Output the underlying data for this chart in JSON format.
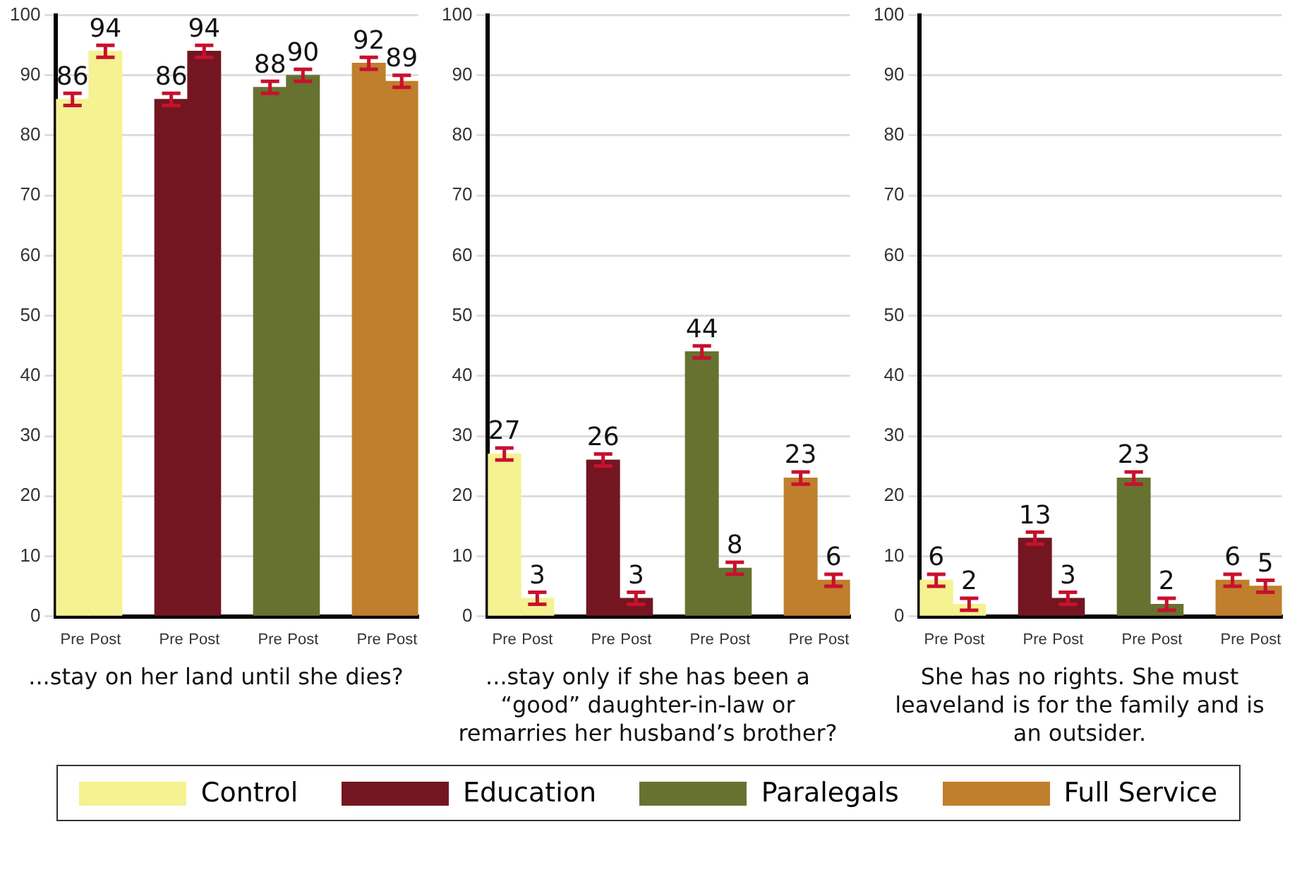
{
  "chart_data": [
    {
      "type": "bar",
      "categories": [
        "Pre",
        "Post",
        null,
        "Pre",
        "Post",
        null,
        "Pre",
        "Post",
        null,
        "Pre",
        "Post"
      ],
      "series": [
        {
          "name": "Control",
          "color": "#f4f291",
          "values": [
            86,
            94,
            null,
            null,
            null,
            null,
            null,
            null,
            null,
            null,
            null
          ],
          "errors": [
            1,
            1,
            null,
            null,
            null,
            null,
            null,
            null,
            null,
            null,
            null
          ]
        },
        {
          "name": "Education",
          "color": "#741621",
          "values": [
            null,
            null,
            null,
            86,
            94,
            null,
            null,
            null,
            null,
            null,
            null
          ],
          "errors": [
            null,
            null,
            null,
            1,
            1,
            null,
            null,
            null,
            null,
            null,
            null
          ]
        },
        {
          "name": "Paralegals",
          "color": "#677231",
          "values": [
            null,
            null,
            null,
            null,
            null,
            null,
            88,
            90,
            null,
            null,
            null
          ],
          "errors": [
            null,
            null,
            null,
            null,
            null,
            null,
            1,
            1,
            null,
            null,
            null
          ]
        },
        {
          "name": "Full Service",
          "color": "#c07f2c",
          "values": [
            null,
            null,
            null,
            null,
            null,
            null,
            null,
            null,
            null,
            92,
            89
          ],
          "errors": [
            null,
            null,
            null,
            null,
            null,
            null,
            null,
            null,
            null,
            1,
            1
          ]
        }
      ],
      "ylim": [
        0,
        100
      ],
      "yticks": [
        0,
        10,
        20,
        30,
        40,
        50,
        60,
        70,
        80,
        90,
        100
      ],
      "grid": "y",
      "data_labels": true,
      "legend": "bottom",
      "xlabel": "...stay on her land until she dies?"
    },
    {
      "type": "bar",
      "categories": [
        "Pre",
        "Post",
        null,
        "Pre",
        "Post",
        null,
        "Pre",
        "Post",
        null,
        "Pre",
        "Post"
      ],
      "series": [
        {
          "color": "#f4f291",
          "values": [
            27,
            3,
            null,
            null,
            null,
            null,
            null,
            null,
            null,
            null,
            null
          ],
          "errors": [
            1,
            1,
            null,
            null,
            null,
            null,
            null,
            null,
            null,
            null,
            null
          ]
        },
        {
          "color": "#741621",
          "values": [
            null,
            null,
            null,
            26,
            3,
            null,
            null,
            null,
            null,
            null,
            null
          ],
          "errors": [
            null,
            null,
            null,
            1,
            1,
            null,
            null,
            null,
            null,
            null,
            null
          ]
        },
        {
          "color": "#677231",
          "values": [
            null,
            null,
            null,
            null,
            null,
            null,
            44,
            8,
            null,
            null,
            null
          ],
          "errors": [
            null,
            null,
            null,
            null,
            null,
            null,
            1,
            1,
            null,
            null,
            null
          ]
        },
        {
          "color": "#c07f2c",
          "values": [
            null,
            null,
            null,
            null,
            null,
            null,
            null,
            null,
            null,
            23,
            6
          ],
          "errors": [
            null,
            null,
            null,
            null,
            null,
            null,
            null,
            null,
            null,
            1,
            1
          ]
        }
      ],
      "ylim": [
        0,
        100
      ],
      "yticks": [
        0,
        10,
        20,
        30,
        40,
        50,
        60,
        70,
        80,
        90,
        100
      ],
      "grid": "y",
      "data_labels": true,
      "xlabel": "...stay only if she has been a “good” daughter-in-law or remarries her husband’s brother?"
    },
    {
      "type": "bar",
      "categories": [
        "Pre",
        "Post",
        null,
        "Pre",
        "Post",
        null,
        "Pre",
        "Post",
        null,
        "Pre",
        "Post"
      ],
      "series": [
        {
          "color": "#f4f291",
          "values": [
            6,
            2,
            null,
            null,
            null,
            null,
            null,
            null,
            null,
            null,
            null
          ],
          "errors": [
            1,
            1,
            null,
            null,
            null,
            null,
            null,
            null,
            null,
            null,
            null
          ]
        },
        {
          "color": "#741621",
          "values": [
            null,
            null,
            null,
            13,
            3,
            null,
            null,
            null,
            null,
            null,
            null
          ],
          "errors": [
            null,
            null,
            null,
            1,
            1,
            null,
            null,
            null,
            null,
            null,
            null
          ]
        },
        {
          "color": "#677231",
          "values": [
            null,
            null,
            null,
            null,
            null,
            null,
            23,
            2,
            null,
            null,
            null
          ],
          "errors": [
            null,
            null,
            null,
            null,
            null,
            null,
            1,
            1,
            null,
            null,
            null
          ]
        },
        {
          "color": "#c07f2c",
          "values": [
            null,
            null,
            null,
            null,
            null,
            null,
            null,
            null,
            null,
            6,
            5
          ],
          "errors": [
            null,
            null,
            null,
            null,
            null,
            null,
            null,
            null,
            null,
            1,
            1
          ]
        }
      ],
      "ylim": [
        0,
        100
      ],
      "yticks": [
        0,
        10,
        20,
        30,
        40,
        50,
        60,
        70,
        80,
        90,
        100
      ],
      "grid": "y",
      "data_labels": true,
      "xlabel": "She has no rights. She must leaveland is for the family and is an outsider."
    }
  ]
}
